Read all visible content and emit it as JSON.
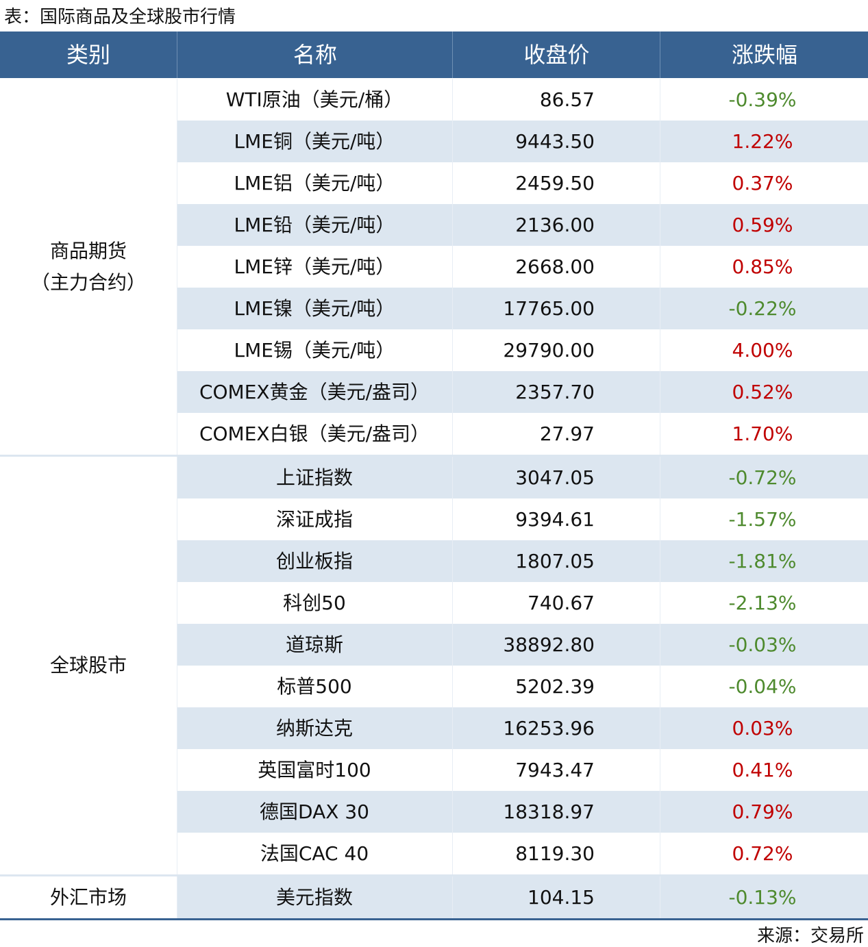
{
  "title": "表：国际商品及全球股市行情",
  "table": {
    "header": [
      "类别",
      "名称",
      "收盘价",
      "涨跌幅"
    ],
    "groups": [
      {
        "category": [
          "商品期货",
          "（主力合约）"
        ],
        "rows": [
          [
            "WTI原油（美元/桶）",
            "86.57",
            "-0.39%"
          ],
          [
            "LME铜（美元/吨）",
            "9443.50",
            "1.22%"
          ],
          [
            "LME铝（美元/吨）",
            "2459.50",
            "0.37%"
          ],
          [
            "LME铅（美元/吨）",
            "2136.00",
            "0.59%"
          ],
          [
            "LME锌（美元/吨）",
            "2668.00",
            "0.85%"
          ],
          [
            "LME镍（美元/吨）",
            "17765.00",
            "-0.22%"
          ],
          [
            "LME锡（美元/吨）",
            "29790.00",
            "4.00%"
          ],
          [
            "COMEX黄金（美元/盎司）",
            "2357.70",
            "0.52%"
          ],
          [
            "COMEX白银（美元/盎司）",
            "27.97",
            "1.70%"
          ]
        ]
      },
      {
        "category": [
          "全球股市"
        ],
        "rows": [
          [
            "上证指数",
            "3047.05",
            "-0.72%"
          ],
          [
            "深证成指",
            "9394.61",
            "-1.57%"
          ],
          [
            "创业板指",
            "1807.05",
            "-1.81%"
          ],
          [
            "科创50",
            "740.67",
            "-2.13%"
          ],
          [
            "道琼斯",
            "38892.80",
            "-0.03%"
          ],
          [
            "标普500",
            "5202.39",
            "-0.04%"
          ],
          [
            "纳斯达克",
            "16253.96",
            "0.03%"
          ],
          [
            "英国富时100",
            "7943.47",
            "0.41%"
          ],
          [
            "德国DAX 30",
            "18318.97",
            "0.79%"
          ],
          [
            "法国CAC 40",
            "8119.30",
            "0.72%"
          ]
        ]
      },
      {
        "category": [
          "外汇市场"
        ],
        "rows": [
          [
            "美元指数",
            "104.15",
            "-0.13%"
          ]
        ]
      }
    ]
  },
  "source": "来源：交易所"
}
